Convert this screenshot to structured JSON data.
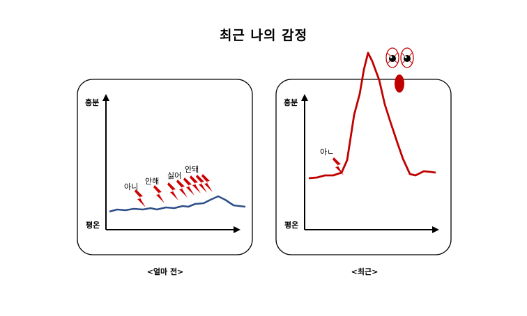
{
  "title": "최근 나의 감정",
  "chart_data": [
    {
      "type": "line",
      "caption": "<얼마 전>",
      "ylabel_top": "흥분",
      "ylabel_bottom": "평온",
      "series": [
        {
          "color": "#2f4f8a",
          "values": [
            0.1,
            0.12,
            0.11,
            0.12,
            0.13,
            0.12,
            0.14,
            0.13,
            0.15,
            0.14,
            0.16,
            0.18,
            0.2,
            0.22,
            0.25,
            0.3,
            0.28,
            0.22,
            0.18,
            0.16
          ]
        }
      ],
      "annotations": [
        "아니",
        "안해",
        "싫어",
        "안돼"
      ],
      "bolt_color": "#cc0000"
    },
    {
      "type": "line",
      "caption": "<최근>",
      "ylabel_top": "흥분",
      "ylabel_bottom": "평온",
      "series": [
        {
          "color": "#c00000",
          "values": [
            0.4,
            0.4,
            0.42,
            0.44,
            0.45,
            0.55,
            0.85,
            1.3,
            1.45,
            1.2,
            0.9,
            0.55,
            0.45,
            0.46,
            0.47
          ]
        }
      ],
      "annotations": [
        "아ㄴ"
      ],
      "bolt_color": "#cc0000"
    }
  ]
}
